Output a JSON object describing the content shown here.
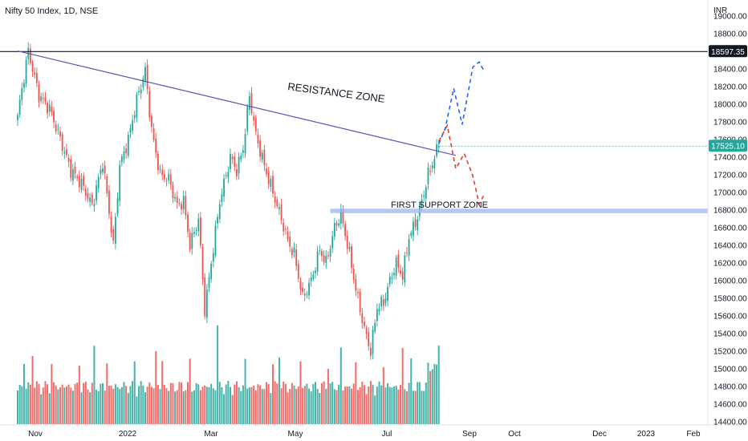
{
  "chart_data": {
    "type": "candlestick",
    "title": "Nifty 50 Index, 1D, NSE",
    "currency": "INR",
    "price_axis": {
      "ticks": [
        "19000.00",
        "18800.00",
        "18600.00",
        "18400.00",
        "18200.00",
        "18000.00",
        "17800.00",
        "17600.00",
        "17400.00",
        "17200.00",
        "17000.00",
        "16800.00",
        "16600.00",
        "16400.00",
        "16200.00",
        "16000.00",
        "15800.00",
        "15600.00",
        "15400.00",
        "15200.00",
        "15000.00",
        "14800.00",
        "14600.00",
        "14400.00"
      ],
      "ylim": [
        14400,
        19200
      ]
    },
    "time_axis": {
      "ticks": [
        "Nov",
        "2022",
        "Mar",
        "May",
        "Jul",
        "Sep",
        "Oct",
        "Dec",
        "2023",
        "Feb"
      ]
    },
    "labels": {
      "last_price": "17525.10",
      "high_line": "18597.35"
    },
    "annotations": {
      "resistance": "RESISTANCE ZONE",
      "support": "FIRST SUPPORT ZONE"
    },
    "levels": {
      "high": 18597.35,
      "support": 16793,
      "last": 17525.1
    },
    "trendline": {
      "from": [
        0,
        18604
      ],
      "to": [
        206,
        17420
      ]
    },
    "keypoints": [
      [
        0,
        17880
      ],
      [
        5,
        18604
      ],
      [
        10,
        18100
      ],
      [
        15,
        17950
      ],
      [
        20,
        17600
      ],
      [
        25,
        17250
      ],
      [
        30,
        17100
      ],
      [
        35,
        16850
      ],
      [
        40,
        17350
      ],
      [
        45,
        16400
      ],
      [
        48,
        17300
      ],
      [
        52,
        17600
      ],
      [
        56,
        18050
      ],
      [
        60,
        18380
      ],
      [
        63,
        17700
      ],
      [
        67,
        17200
      ],
      [
        71,
        17150
      ],
      [
        75,
        16850
      ],
      [
        78,
        16900
      ],
      [
        81,
        16400
      ],
      [
        85,
        16700
      ],
      [
        88,
        15670
      ],
      [
        91,
        16200
      ],
      [
        95,
        16900
      ],
      [
        100,
        17400
      ],
      [
        103,
        17250
      ],
      [
        106,
        17500
      ],
      [
        109,
        18100
      ],
      [
        112,
        17650
      ],
      [
        116,
        17300
      ],
      [
        120,
        17000
      ],
      [
        124,
        16700
      ],
      [
        127,
        16450
      ],
      [
        130,
        16300
      ],
      [
        134,
        15800
      ],
      [
        138,
        16000
      ],
      [
        142,
        16350
      ],
      [
        145,
        16200
      ],
      [
        149,
        16600
      ],
      [
        152,
        16750
      ],
      [
        156,
        16300
      ],
      [
        159,
        15900
      ],
      [
        163,
        15450
      ],
      [
        166,
        15200
      ],
      [
        169,
        15700
      ],
      [
        172,
        15750
      ],
      [
        175,
        16000
      ],
      [
        178,
        16200
      ],
      [
        181,
        16050
      ],
      [
        184,
        16500
      ],
      [
        187,
        16650
      ],
      [
        190,
        16900
      ],
      [
        193,
        17200
      ],
      [
        196,
        17400
      ],
      [
        198,
        17525
      ]
    ],
    "projections": {
      "bullish": [
        [
          198,
          17550
        ],
        [
          201,
          17720
        ],
        [
          205,
          18180
        ],
        [
          209,
          17770
        ],
        [
          214,
          18420
        ],
        [
          217,
          18480
        ],
        [
          219,
          18390
        ]
      ],
      "bearish": [
        [
          198,
          17580
        ],
        [
          202,
          17760
        ],
        [
          206,
          17270
        ],
        [
          210,
          17440
        ],
        [
          214,
          17190
        ],
        [
          217,
          16870
        ],
        [
          219,
          16960
        ]
      ]
    },
    "colors": {
      "up": "#26a69a",
      "down": "#ef5350",
      "resistance_line": "#5b55b5",
      "support_band": "#9db7f2",
      "bullish_projection": "#2962ff",
      "bearish_projection": "#e53935",
      "price_tag": "#26a69a"
    }
  }
}
